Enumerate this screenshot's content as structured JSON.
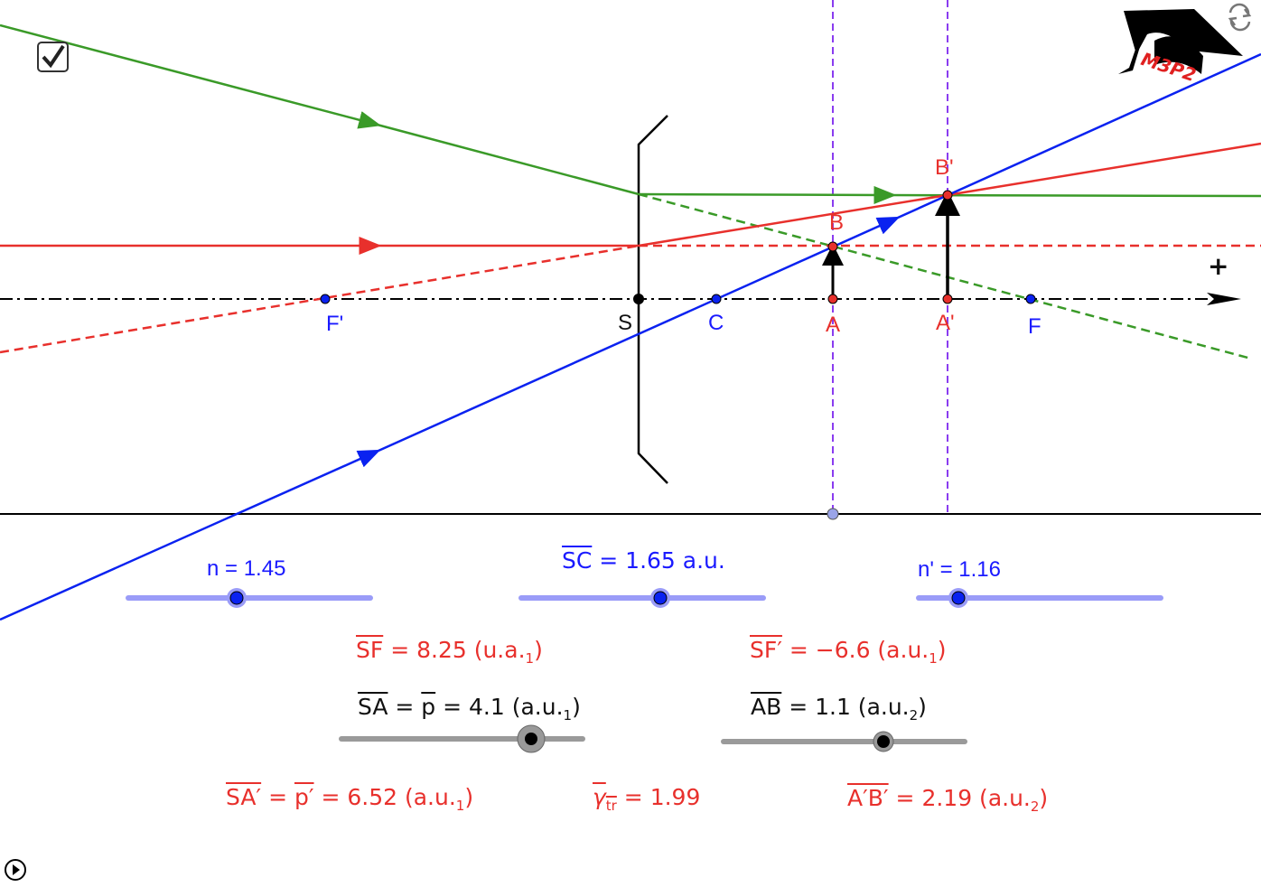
{
  "colors": {
    "green": "#3a9a28",
    "red": "#e8302c",
    "blue": "#0a22f0",
    "purple": "#8a3cf0",
    "slider_blue": "#9a9cf8",
    "slider_gray": "#9a9a9a"
  },
  "icons": {
    "checkbox": "checkbox-checked-icon",
    "refresh": "refresh-icon",
    "play": "play-circle-icon",
    "logo": "graduation-cap-logo"
  },
  "logo_text": "M3P2",
  "points": {
    "F_prime": "F'",
    "S": "S",
    "C": "C",
    "A": "A",
    "A_prime": "A'",
    "F": "F",
    "B": "B",
    "B_prime": "B'"
  },
  "axis_plus": "+",
  "sliders": {
    "n": {
      "label": "n = 1.45",
      "value": 1.45
    },
    "SC": {
      "name": "SC",
      "rest": " = 1.65 a.u.",
      "value": 1.65
    },
    "n_prime": {
      "label": "n' = 1.16",
      "value": 1.16
    },
    "SA": {
      "name": "SA",
      "mid": " = ",
      "p": "p",
      "rest": " = 4.1 (a.u.",
      "sub": "1",
      "close": ")",
      "value": 4.1
    },
    "AB": {
      "name": "AB",
      "rest": " =  1.1 (a.u.",
      "sub": "2",
      "close": ")",
      "value": 1.1
    }
  },
  "results": {
    "SF": {
      "name": "SF",
      "rest": " = 8.25 (u.a.",
      "sub": "1",
      "close": ")"
    },
    "SF_prime": {
      "name": "SF′",
      "rest": " = −6.6 (a.u.",
      "sub": "1",
      "close": ")"
    },
    "SA_prime": {
      "name": "SA′",
      "mid": " = ",
      "p": "p′",
      "rest": " = 6.52 (a.u.",
      "sub": "1",
      "close": ")"
    },
    "gamma": {
      "name": "γ",
      "sub": "tr",
      "rest": " = 1.99"
    },
    "A_prime_B_prime": {
      "name": "A′B′",
      "rest": " = 2.19 (a.u.",
      "sub": "2",
      "close": ")"
    }
  }
}
